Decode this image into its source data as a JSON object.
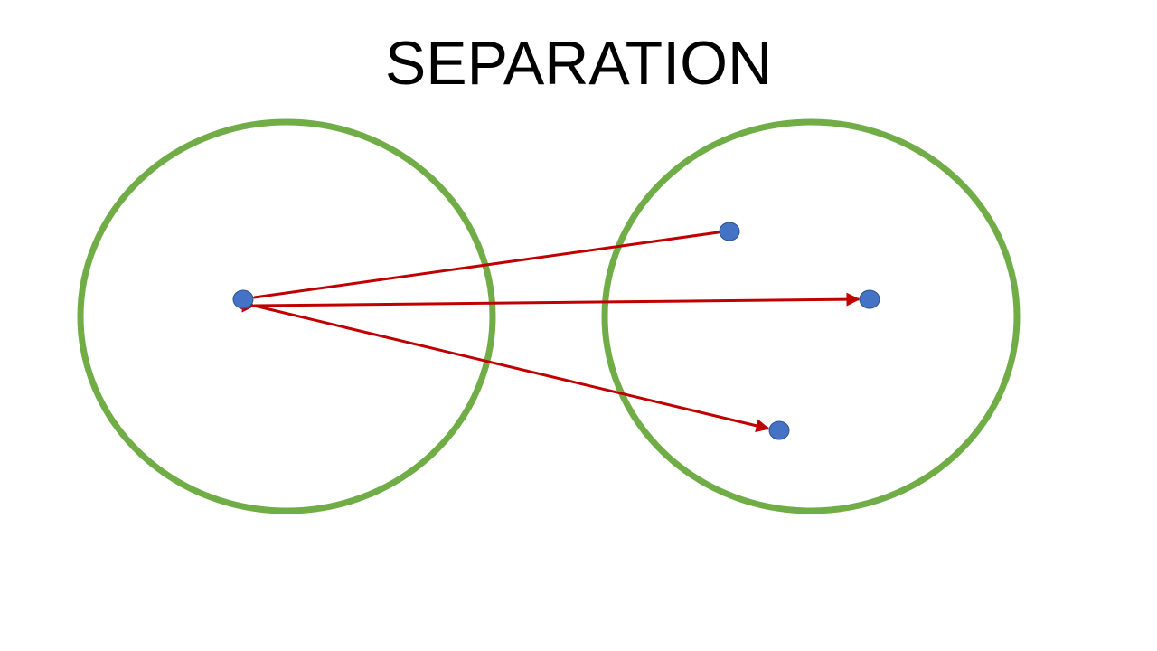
{
  "slide": {
    "title": "SEPARATION"
  },
  "colors": {
    "circle_stroke": "#70AD47",
    "arrow": "#C00000",
    "dot_fill": "#4472C4",
    "dot_stroke": "#2F528F"
  }
}
